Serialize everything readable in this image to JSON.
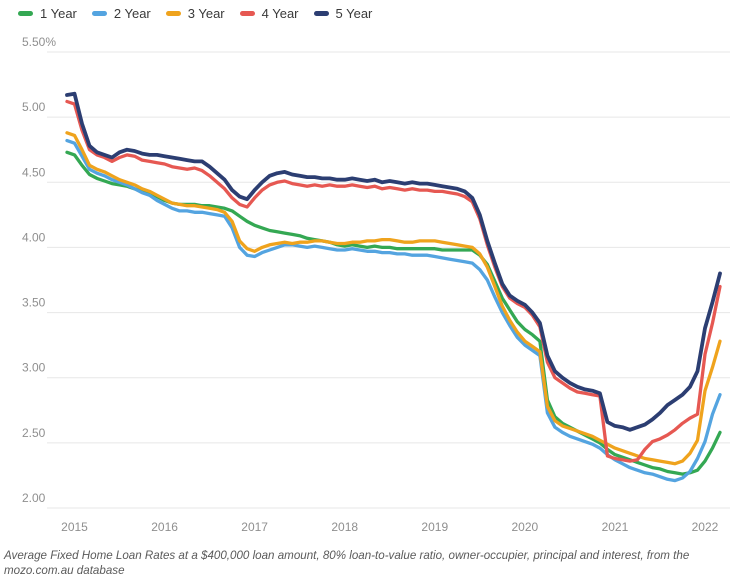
{
  "chart_data": {
    "type": "line",
    "x_unit": "month",
    "x_start": "2014-12",
    "x_end": "2022-03",
    "x_tick_labels": [
      "2015",
      "2016",
      "2017",
      "2018",
      "2019",
      "2020",
      "2021",
      "2022"
    ],
    "y_ticks": [
      {
        "label": "5.50%",
        "value": 5.5
      },
      {
        "label": "5.00",
        "value": 5.0
      },
      {
        "label": "4.50",
        "value": 4.5
      },
      {
        "label": "4.00",
        "value": 4.0
      },
      {
        "label": "3.50",
        "value": 3.5
      },
      {
        "label": "3.00",
        "value": 3.0
      },
      {
        "label": "2.50",
        "value": 2.5
      },
      {
        "label": "2.00",
        "value": 2.0
      }
    ],
    "ylim": [
      2.0,
      5.5
    ],
    "grid": "horizontal",
    "legend_position": "top-left",
    "series": [
      {
        "name": "1 Year",
        "color": "#34a853",
        "values": [
          4.73,
          4.71,
          4.63,
          4.56,
          4.53,
          4.51,
          4.49,
          4.48,
          4.47,
          4.45,
          4.43,
          4.42,
          4.39,
          4.36,
          4.34,
          4.33,
          4.33,
          4.33,
          4.32,
          4.32,
          4.31,
          4.3,
          4.28,
          4.24,
          4.2,
          4.17,
          4.15,
          4.13,
          4.12,
          4.11,
          4.1,
          4.09,
          4.07,
          4.06,
          4.05,
          4.04,
          4.02,
          4.01,
          4.02,
          4.01,
          4.0,
          4.01,
          4.0,
          4.0,
          3.99,
          3.99,
          3.99,
          3.99,
          3.99,
          3.99,
          3.98,
          3.98,
          3.98,
          3.98,
          3.98,
          3.94,
          3.87,
          3.74,
          3.61,
          3.52,
          3.43,
          3.37,
          3.33,
          3.28,
          2.83,
          2.7,
          2.65,
          2.62,
          2.59,
          2.56,
          2.53,
          2.5,
          2.45,
          2.41,
          2.39,
          2.37,
          2.35,
          2.33,
          2.31,
          2.3,
          2.28,
          2.27,
          2.26,
          2.27,
          2.29,
          2.36,
          2.46,
          2.58
        ]
      },
      {
        "name": "2 Year",
        "color": "#54a4e0",
        "values": [
          4.82,
          4.8,
          4.7,
          4.6,
          4.57,
          4.55,
          4.52,
          4.5,
          4.48,
          4.45,
          4.42,
          4.4,
          4.36,
          4.33,
          4.3,
          4.28,
          4.28,
          4.27,
          4.27,
          4.26,
          4.25,
          4.24,
          4.15,
          4.0,
          3.94,
          3.93,
          3.96,
          3.98,
          4.0,
          4.02,
          4.02,
          4.01,
          4.0,
          4.01,
          4.0,
          3.99,
          3.98,
          3.98,
          3.99,
          3.98,
          3.97,
          3.97,
          3.96,
          3.96,
          3.95,
          3.95,
          3.94,
          3.94,
          3.94,
          3.93,
          3.92,
          3.91,
          3.9,
          3.89,
          3.88,
          3.83,
          3.75,
          3.62,
          3.5,
          3.4,
          3.31,
          3.25,
          3.21,
          3.17,
          2.73,
          2.62,
          2.58,
          2.55,
          2.53,
          2.51,
          2.49,
          2.46,
          2.41,
          2.37,
          2.34,
          2.31,
          2.29,
          2.27,
          2.26,
          2.24,
          2.22,
          2.21,
          2.23,
          2.28,
          2.38,
          2.51,
          2.72,
          2.87
        ]
      },
      {
        "name": "3 Year",
        "color": "#efa31d",
        "values": [
          4.88,
          4.86,
          4.75,
          4.63,
          4.6,
          4.58,
          4.55,
          4.52,
          4.5,
          4.48,
          4.45,
          4.43,
          4.4,
          4.37,
          4.34,
          4.33,
          4.32,
          4.32,
          4.31,
          4.3,
          4.29,
          4.27,
          4.2,
          4.05,
          3.99,
          3.97,
          4.0,
          4.02,
          4.03,
          4.04,
          4.03,
          4.04,
          4.04,
          4.05,
          4.05,
          4.04,
          4.03,
          4.03,
          4.04,
          4.04,
          4.05,
          4.05,
          4.06,
          4.06,
          4.05,
          4.04,
          4.04,
          4.05,
          4.05,
          4.05,
          4.04,
          4.03,
          4.02,
          4.01,
          4.0,
          3.95,
          3.85,
          3.7,
          3.55,
          3.44,
          3.35,
          3.28,
          3.24,
          3.2,
          2.78,
          2.67,
          2.63,
          2.61,
          2.59,
          2.57,
          2.55,
          2.52,
          2.49,
          2.46,
          2.44,
          2.42,
          2.4,
          2.38,
          2.37,
          2.36,
          2.35,
          2.34,
          2.36,
          2.42,
          2.52,
          2.9,
          3.08,
          3.28
        ]
      },
      {
        "name": "4 Year",
        "color": "#e65852",
        "values": [
          5.12,
          5.1,
          4.9,
          4.75,
          4.71,
          4.69,
          4.66,
          4.69,
          4.71,
          4.7,
          4.67,
          4.66,
          4.65,
          4.64,
          4.62,
          4.61,
          4.6,
          4.61,
          4.59,
          4.55,
          4.5,
          4.45,
          4.38,
          4.33,
          4.31,
          4.38,
          4.44,
          4.48,
          4.5,
          4.51,
          4.49,
          4.48,
          4.47,
          4.48,
          4.47,
          4.48,
          4.47,
          4.47,
          4.48,
          4.47,
          4.46,
          4.47,
          4.45,
          4.46,
          4.45,
          4.44,
          4.45,
          4.44,
          4.44,
          4.43,
          4.43,
          4.42,
          4.41,
          4.39,
          4.35,
          4.22,
          4.02,
          3.85,
          3.7,
          3.61,
          3.57,
          3.54,
          3.48,
          3.39,
          3.12,
          3.0,
          2.96,
          2.92,
          2.89,
          2.88,
          2.87,
          2.86,
          2.4,
          2.38,
          2.37,
          2.36,
          2.37,
          2.45,
          2.51,
          2.53,
          2.56,
          2.6,
          2.65,
          2.69,
          2.72,
          3.18,
          3.42,
          3.7
        ]
      },
      {
        "name": "5 Year",
        "color": "#2c3e72",
        "values": [
          5.17,
          5.18,
          4.95,
          4.78,
          4.73,
          4.71,
          4.69,
          4.73,
          4.75,
          4.74,
          4.72,
          4.71,
          4.71,
          4.7,
          4.69,
          4.68,
          4.67,
          4.66,
          4.66,
          4.62,
          4.57,
          4.52,
          4.44,
          4.39,
          4.37,
          4.44,
          4.5,
          4.55,
          4.57,
          4.58,
          4.56,
          4.55,
          4.54,
          4.54,
          4.53,
          4.53,
          4.52,
          4.52,
          4.53,
          4.52,
          4.51,
          4.52,
          4.5,
          4.51,
          4.5,
          4.49,
          4.5,
          4.49,
          4.49,
          4.48,
          4.47,
          4.46,
          4.45,
          4.43,
          4.38,
          4.25,
          4.05,
          3.88,
          3.72,
          3.63,
          3.59,
          3.56,
          3.5,
          3.42,
          3.17,
          3.05,
          3.0,
          2.96,
          2.93,
          2.91,
          2.9,
          2.88,
          2.66,
          2.63,
          2.62,
          2.6,
          2.62,
          2.64,
          2.68,
          2.73,
          2.79,
          2.83,
          2.87,
          2.93,
          3.05,
          3.38,
          3.58,
          3.8
        ]
      }
    ]
  },
  "footer": {
    "caption": "Average Fixed Home Loan Rates at a $400,000 loan amount, 80% loan-to-value ratio, owner-occupier, principal and interest, from the mozo.com.au database"
  }
}
